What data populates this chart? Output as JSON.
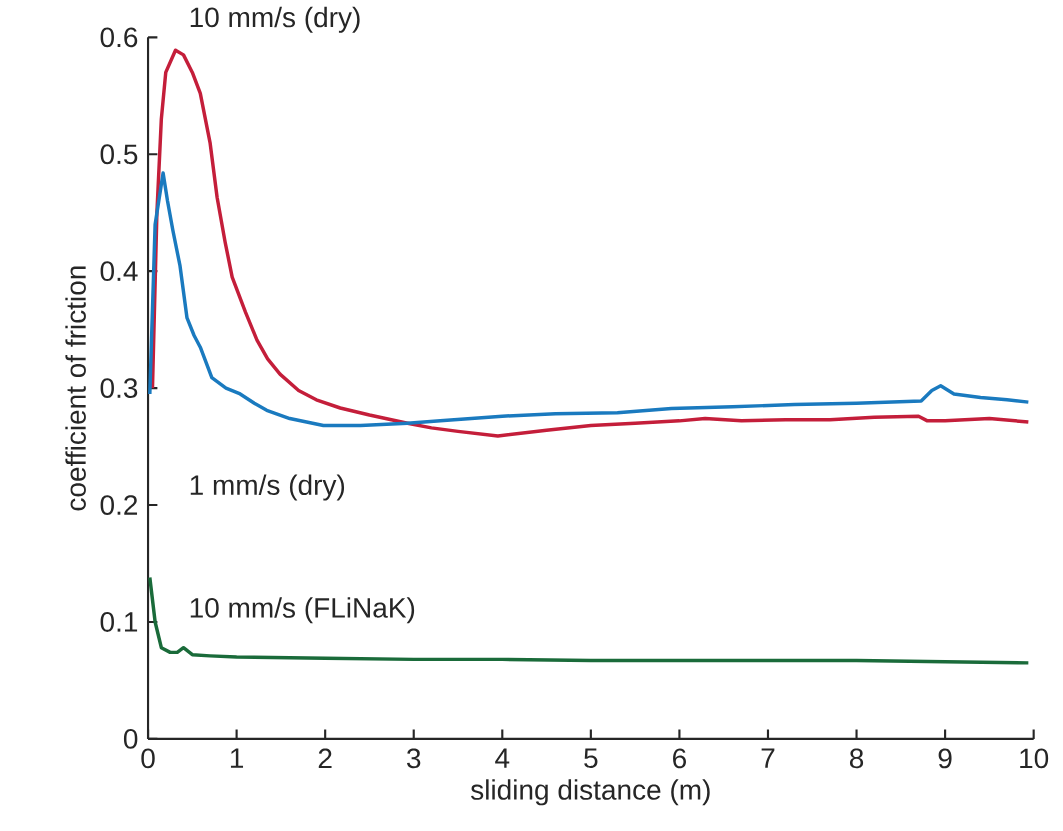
{
  "chart_data": {
    "type": "line",
    "xlabel": "sliding distance (m)",
    "ylabel": "coefficient of friction",
    "xlim": [
      0,
      10
    ],
    "ylim": [
      0,
      0.6
    ],
    "xticks": [
      0,
      1,
      2,
      3,
      4,
      5,
      6,
      7,
      8,
      9,
      10
    ],
    "yticks": [
      0,
      0.1,
      0.2,
      0.3,
      0.4,
      0.5,
      0.6
    ],
    "grid": false,
    "legend": false,
    "marker": "none",
    "line_style": "solid",
    "series": [
      {
        "name": "10 mm/s (dry)",
        "color": "#c41e3a",
        "x": [
          0.05,
          0.1,
          0.15,
          0.2,
          0.31,
          0.4,
          0.5,
          0.59,
          0.7,
          0.78,
          0.87,
          0.95,
          1.1,
          1.23,
          1.35,
          1.49,
          1.7,
          1.9,
          2.17,
          2.5,
          2.93,
          3.2,
          3.5,
          3.95,
          4.5,
          5.0,
          5.5,
          6.0,
          6.29,
          6.7,
          7.2,
          7.7,
          8.2,
          8.7,
          8.8,
          9.0,
          9.5,
          9.94
        ],
        "values": [
          0.3,
          0.45,
          0.53,
          0.57,
          0.589,
          0.585,
          0.57,
          0.552,
          0.51,
          0.463,
          0.425,
          0.395,
          0.365,
          0.341,
          0.325,
          0.312,
          0.298,
          0.29,
          0.283,
          0.277,
          0.27,
          0.266,
          0.263,
          0.259,
          0.264,
          0.268,
          0.27,
          0.272,
          0.274,
          0.272,
          0.273,
          0.273,
          0.275,
          0.276,
          0.272,
          0.272,
          0.274,
          0.271
        ]
      },
      {
        "name": "1 mm/s (dry)",
        "color": "#1a7abf",
        "x": [
          0.02,
          0.08,
          0.17,
          0.22,
          0.28,
          0.36,
          0.44,
          0.52,
          0.59,
          0.72,
          0.88,
          1.04,
          1.2,
          1.34,
          1.6,
          1.98,
          2.4,
          2.93,
          3.3,
          4.0,
          4.6,
          5.3,
          5.91,
          6.6,
          7.3,
          8.0,
          8.73,
          8.85,
          8.95,
          9.1,
          9.4,
          9.7,
          9.94
        ],
        "values": [
          0.295,
          0.44,
          0.484,
          0.46,
          0.435,
          0.405,
          0.36,
          0.345,
          0.335,
          0.309,
          0.3,
          0.295,
          0.287,
          0.281,
          0.274,
          0.268,
          0.268,
          0.27,
          0.272,
          0.276,
          0.278,
          0.279,
          0.2825,
          0.284,
          0.286,
          0.287,
          0.289,
          0.298,
          0.302,
          0.295,
          0.292,
          0.29,
          0.288
        ]
      },
      {
        "name": "10 mm/s  (FLiNaK)",
        "color": "#1a6b3a",
        "x": [
          0.02,
          0.08,
          0.15,
          0.25,
          0.33,
          0.4,
          0.5,
          0.7,
          1.0,
          2.0,
          3.0,
          4.0,
          5.0,
          6.0,
          7.0,
          8.0,
          9.0,
          9.94
        ],
        "values": [
          0.138,
          0.1,
          0.078,
          0.074,
          0.074,
          0.078,
          0.072,
          0.071,
          0.07,
          0.069,
          0.068,
          0.068,
          0.067,
          0.067,
          0.067,
          0.067,
          0.066,
          0.065
        ]
      }
    ]
  }
}
